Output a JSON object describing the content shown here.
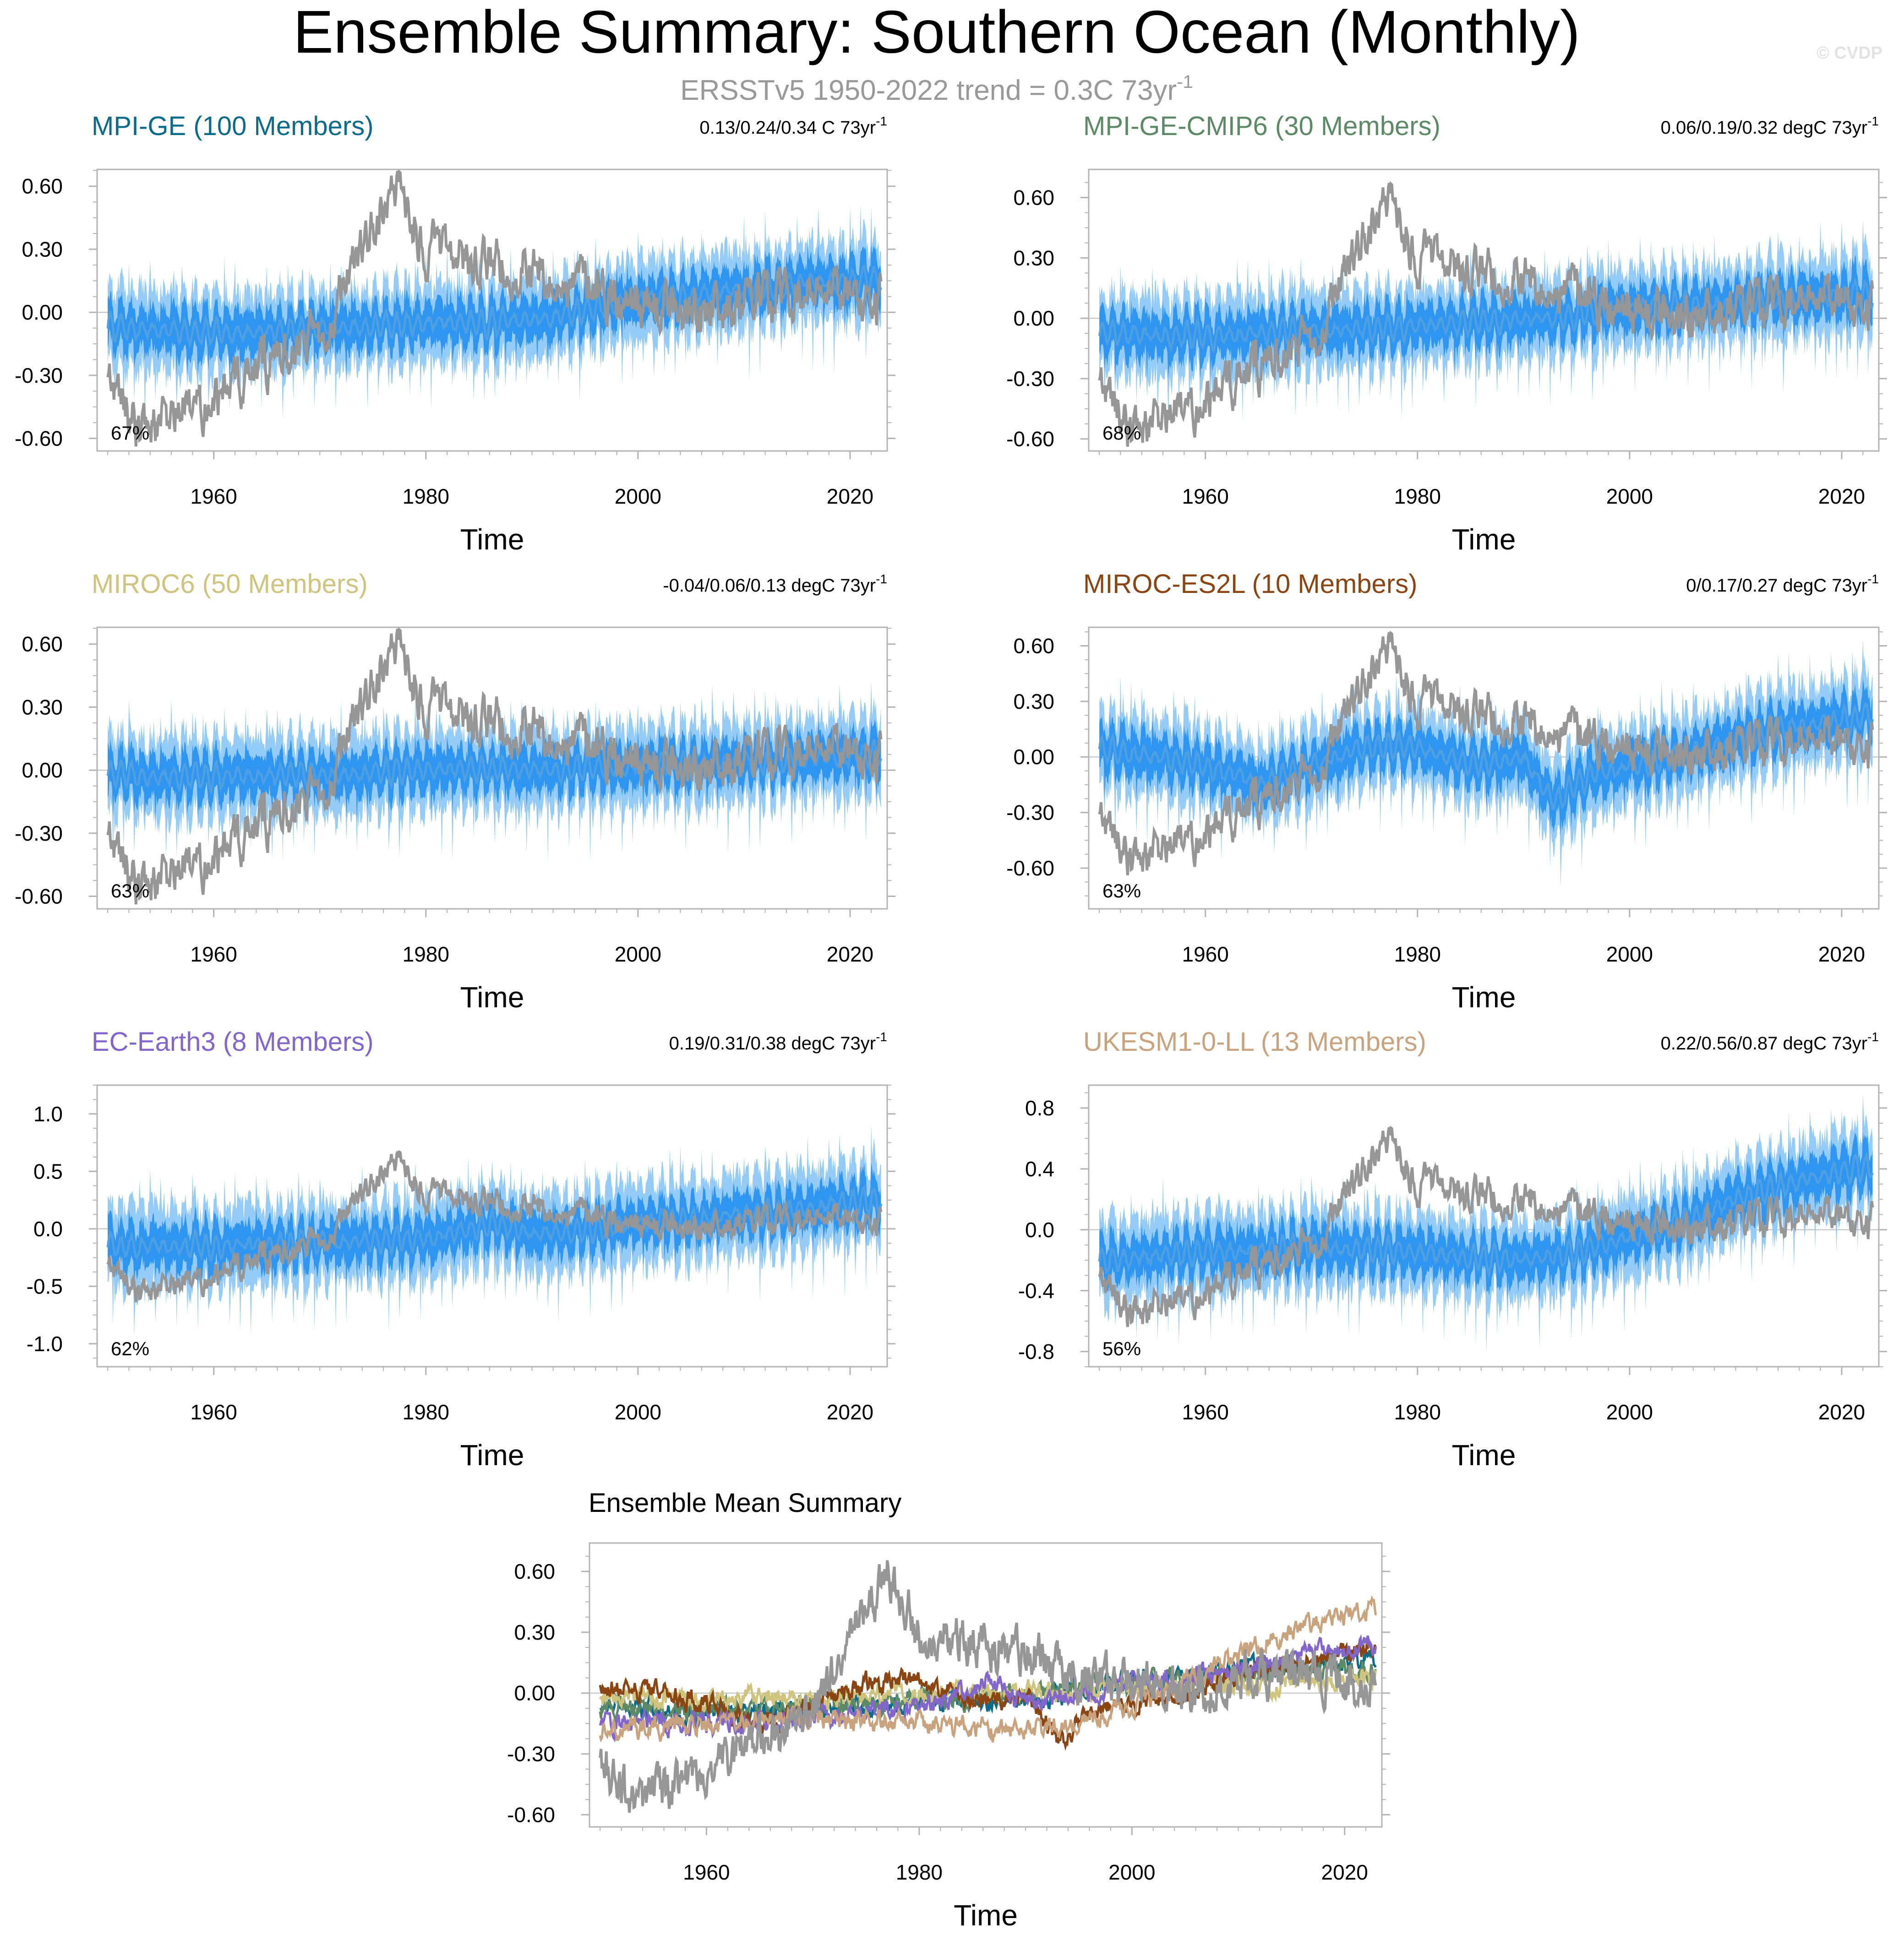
{
  "figure": {
    "title": "Ensemble Summary: Southern Ocean (Monthly)",
    "subtitle_main": "ERSSTv5 1950-2022 trend = 0.3C 73yr",
    "subtitle_sup": "-1",
    "watermark": "© CVDP"
  },
  "colors": {
    "band_outer": "#94cbf7",
    "band_inner": "#2e95f0",
    "mean_line": "#4f9fe3",
    "obs_line": "#969696",
    "zero_line": "#bdbdbd"
  },
  "chart_data": [
    {
      "type": "line",
      "title": "MPI-GE (100 Members)",
      "title_color": "#0b6b8a",
      "trend_text": "0.13/0.24/0.34 C 73yr",
      "trend_sup": "-1",
      "pct": "67%",
      "xlabel": "Time",
      "xlim": [
        1949,
        2023.5
      ],
      "xticks": [
        1960,
        1980,
        2000,
        2020
      ],
      "xtick_labels": [
        "1960",
        "1980",
        "2000",
        "2020"
      ],
      "ylim": [
        -0.66,
        0.68
      ],
      "yticks": [
        -0.6,
        -0.3,
        0.0,
        0.3,
        0.6
      ],
      "ytick_labels": [
        "-0.60",
        "-0.30",
        "0.00",
        "0.30",
        "0.60"
      ],
      "series": [
        {
          "name": "Ensemble mean",
          "x": [
            1950,
            1960,
            1970,
            1980,
            1990,
            2000,
            2010,
            2022
          ],
          "y": [
            -0.07,
            -0.1,
            -0.08,
            -0.05,
            -0.04,
            0.06,
            0.11,
            0.16
          ]
        },
        {
          "name": "ERSSTv5",
          "x": [
            1950,
            1953,
            1958,
            1963,
            1970,
            1977,
            1980,
            1985,
            1990,
            1995,
            2000,
            2005,
            2010,
            2015,
            2020,
            2022
          ],
          "y": [
            -0.3,
            -0.55,
            -0.45,
            -0.3,
            -0.1,
            0.62,
            0.3,
            0.25,
            0.2,
            0.1,
            0.05,
            0.0,
            0.05,
            0.1,
            0.05,
            0.05
          ]
        }
      ]
    },
    {
      "type": "line",
      "title": "MPI-GE-CMIP6 (30 Members)",
      "title_color": "#5d8a66",
      "trend_text": "0.06/0.19/0.32 degC 73yr",
      "trend_sup": "-1",
      "pct": "68%",
      "xlabel": "Time",
      "xlim": [
        1949,
        2023.5
      ],
      "xticks": [
        1960,
        1980,
        2000,
        2020
      ],
      "xtick_labels": [
        "1960",
        "1980",
        "2000",
        "2020"
      ],
      "ylim": [
        -0.66,
        0.74
      ],
      "yticks": [
        -0.6,
        -0.3,
        0.0,
        0.3,
        0.6
      ],
      "ytick_labels": [
        "-0.60",
        "-0.30",
        "0.00",
        "0.30",
        "0.60"
      ],
      "series": [
        {
          "name": "Ensemble mean",
          "x": [
            1950,
            1960,
            1970,
            1980,
            1990,
            2000,
            2010,
            2022
          ],
          "y": [
            -0.08,
            -0.09,
            -0.06,
            -0.04,
            -0.01,
            0.05,
            0.08,
            0.12
          ]
        },
        {
          "name": "ERSSTv5",
          "x": [
            1950,
            1953,
            1958,
            1963,
            1970,
            1977,
            1980,
            1985,
            1990,
            1995,
            2000,
            2005,
            2010,
            2015,
            2020,
            2022
          ],
          "y": [
            -0.3,
            -0.55,
            -0.45,
            -0.3,
            -0.1,
            0.62,
            0.3,
            0.25,
            0.2,
            0.1,
            0.05,
            0.0,
            0.05,
            0.1,
            0.05,
            0.05
          ]
        }
      ]
    },
    {
      "type": "line",
      "title": "MIROC6 (50 Members)",
      "title_color": "#cfc47d",
      "trend_text": "-0.04/0.06/0.13 degC 73yr",
      "trend_sup": "-1",
      "pct": "63%",
      "xlabel": "Time",
      "xlim": [
        1949,
        2023.5
      ],
      "xticks": [
        1960,
        1980,
        2000,
        2020
      ],
      "xtick_labels": [
        "1960",
        "1980",
        "2000",
        "2020"
      ],
      "ylim": [
        -0.66,
        0.68
      ],
      "yticks": [
        -0.6,
        -0.3,
        0.0,
        0.3,
        0.6
      ],
      "ytick_labels": [
        "-0.60",
        "-0.30",
        "0.00",
        "0.30",
        "0.60"
      ],
      "series": [
        {
          "name": "Ensemble mean",
          "x": [
            1950,
            1960,
            1970,
            1980,
            1990,
            2000,
            2010,
            2022
          ],
          "y": [
            -0.02,
            -0.03,
            -0.02,
            0.0,
            0.0,
            0.02,
            0.04,
            0.07
          ]
        },
        {
          "name": "ERSSTv5",
          "x": [
            1950,
            1953,
            1958,
            1963,
            1970,
            1977,
            1980,
            1985,
            1990,
            1995,
            2000,
            2005,
            2010,
            2015,
            2020,
            2022
          ],
          "y": [
            -0.3,
            -0.55,
            -0.45,
            -0.3,
            -0.1,
            0.62,
            0.3,
            0.25,
            0.2,
            0.1,
            0.05,
            0.0,
            0.05,
            0.1,
            0.05,
            0.05
          ]
        }
      ]
    },
    {
      "type": "line",
      "title": "MIROC-ES2L (10 Members)",
      "title_color": "#8a4512",
      "trend_text": "0/0.17/0.27 degC 73yr",
      "trend_sup": "-1",
      "pct": "63%",
      "xlabel": "Time",
      "xlim": [
        1949,
        2023.5
      ],
      "xticks": [
        1960,
        1980,
        2000,
        2020
      ],
      "xtick_labels": [
        "1960",
        "1980",
        "2000",
        "2020"
      ],
      "ylim": [
        -0.82,
        0.7
      ],
      "yticks": [
        -0.6,
        -0.3,
        0.0,
        0.3,
        0.6
      ],
      "ytick_labels": [
        "-0.60",
        "-0.30",
        "0.00",
        "0.30",
        "0.60"
      ],
      "series": [
        {
          "name": "Ensemble mean",
          "x": [
            1950,
            1955,
            1960,
            1965,
            1970,
            1975,
            1980,
            1985,
            1990,
            1993,
            1996,
            2000,
            2005,
            2010,
            2015,
            2022
          ],
          "y": [
            0.05,
            0.0,
            -0.05,
            -0.15,
            -0.05,
            0.05,
            0.05,
            -0.05,
            0.0,
            -0.25,
            -0.1,
            -0.05,
            0.0,
            0.1,
            0.15,
            0.22
          ]
        },
        {
          "name": "ERSSTv5",
          "x": [
            1950,
            1953,
            1958,
            1963,
            1970,
            1977,
            1980,
            1985,
            1990,
            1995,
            2000,
            2005,
            2010,
            2015,
            2020,
            2022
          ],
          "y": [
            -0.3,
            -0.55,
            -0.45,
            -0.3,
            -0.1,
            0.62,
            0.3,
            0.25,
            0.2,
            0.1,
            0.05,
            0.0,
            0.05,
            0.1,
            0.05,
            0.05
          ]
        }
      ]
    },
    {
      "type": "line",
      "title": "EC-Earth3 (8 Members)",
      "title_color": "#8366cc",
      "trend_text": "0.19/0.31/0.38 degC 73yr",
      "trend_sup": "-1",
      "pct": "62%",
      "xlabel": "Time",
      "xlim": [
        1949,
        2023.5
      ],
      "xticks": [
        1960,
        1980,
        2000,
        2020
      ],
      "xtick_labels": [
        "1960",
        "1980",
        "2000",
        "2020"
      ],
      "ylim": [
        -1.2,
        1.25
      ],
      "yticks": [
        -1.0,
        -0.5,
        0.0,
        0.5,
        1.0
      ],
      "ytick_labels": [
        "-1.0",
        "-0.5",
        "0.0",
        "0.5",
        "1.0"
      ],
      "series": [
        {
          "name": "Ensemble mean",
          "x": [
            1950,
            1960,
            1970,
            1980,
            1987,
            1990,
            2000,
            2010,
            2022
          ],
          "y": [
            -0.15,
            -0.15,
            -0.12,
            -0.08,
            0.05,
            -0.05,
            0.05,
            0.12,
            0.25
          ]
        },
        {
          "name": "ERSSTv5",
          "x": [
            1950,
            1953,
            1958,
            1963,
            1970,
            1977,
            1980,
            1985,
            1990,
            1995,
            2000,
            2005,
            2010,
            2015,
            2020,
            2022
          ],
          "y": [
            -0.3,
            -0.55,
            -0.45,
            -0.3,
            -0.1,
            0.62,
            0.3,
            0.25,
            0.2,
            0.1,
            0.05,
            0.0,
            0.05,
            0.1,
            0.05,
            0.05
          ]
        }
      ]
    },
    {
      "type": "line",
      "title": "UKESM1-0-LL (13 Members)",
      "title_color": "#c9a27e",
      "trend_text": "0.22/0.56/0.87 degC 73yr",
      "trend_sup": "-1",
      "pct": "56%",
      "xlabel": "Time",
      "xlim": [
        1949,
        2023.5
      ],
      "xticks": [
        1960,
        1980,
        2000,
        2020
      ],
      "xtick_labels": [
        "1960",
        "1980",
        "2000",
        "2020"
      ],
      "ylim": [
        -0.9,
        0.95
      ],
      "yticks": [
        -0.8,
        -0.4,
        0.0,
        0.4,
        0.8
      ],
      "ytick_labels": [
        "-0.8",
        "-0.4",
        "0.0",
        "0.4",
        "0.8"
      ],
      "series": [
        {
          "name": "Ensemble mean",
          "x": [
            1950,
            1960,
            1970,
            1980,
            1990,
            1995,
            2000,
            2005,
            2010,
            2015,
            2022
          ],
          "y": [
            -0.2,
            -0.15,
            -0.12,
            -0.15,
            -0.2,
            -0.15,
            -0.05,
            0.05,
            0.2,
            0.3,
            0.42
          ]
        },
        {
          "name": "ERSSTv5",
          "x": [
            1950,
            1953,
            1958,
            1963,
            1970,
            1977,
            1980,
            1985,
            1990,
            1995,
            2000,
            2005,
            2010,
            2015,
            2020,
            2022
          ],
          "y": [
            -0.3,
            -0.55,
            -0.45,
            -0.3,
            -0.1,
            0.62,
            0.3,
            0.25,
            0.2,
            0.1,
            0.05,
            0.0,
            0.05,
            0.1,
            0.05,
            0.05
          ]
        }
      ]
    },
    {
      "type": "line",
      "title": "Ensemble Mean Summary",
      "title_color": "#000000",
      "trend_text": "",
      "trend_sup": "",
      "pct": "",
      "xlabel": "Time",
      "xlim": [
        1949,
        2023.5
      ],
      "xticks": [
        1960,
        1980,
        2000,
        2020
      ],
      "xtick_labels": [
        "1960",
        "1980",
        "2000",
        "2020"
      ],
      "ylim": [
        -0.66,
        0.74
      ],
      "yticks": [
        -0.6,
        -0.3,
        0.0,
        0.3,
        0.6
      ],
      "ytick_labels": [
        "-0.60",
        "-0.30",
        "0.00",
        "0.30",
        "0.60"
      ],
      "series": [
        {
          "name": "MPI-GE",
          "color": "#0b6b8a",
          "x": [
            1950,
            1960,
            1970,
            1980,
            1990,
            2000,
            2010,
            2022
          ],
          "y": [
            -0.07,
            -0.1,
            -0.08,
            -0.05,
            -0.04,
            0.06,
            0.11,
            0.16
          ]
        },
        {
          "name": "MPI-GE-CMIP6",
          "color": "#5d8a66",
          "x": [
            1950,
            1960,
            1970,
            1980,
            1990,
            2000,
            2010,
            2022
          ],
          "y": [
            -0.08,
            -0.09,
            -0.06,
            -0.04,
            -0.01,
            0.05,
            0.08,
            0.12
          ]
        },
        {
          "name": "MIROC6",
          "color": "#cfc47d",
          "x": [
            1950,
            1960,
            1970,
            1980,
            1990,
            2000,
            2010,
            2022
          ],
          "y": [
            -0.02,
            -0.03,
            -0.02,
            0.0,
            0.0,
            0.02,
            0.04,
            0.07
          ]
        },
        {
          "name": "MIROC-ES2L",
          "color": "#8a4512",
          "x": [
            1950,
            1955,
            1960,
            1965,
            1970,
            1975,
            1980,
            1985,
            1990,
            1993,
            1996,
            2000,
            2005,
            2010,
            2015,
            2022
          ],
          "y": [
            0.05,
            0.0,
            -0.05,
            -0.15,
            -0.05,
            0.05,
            0.05,
            -0.05,
            0.0,
            -0.25,
            -0.1,
            -0.05,
            0.0,
            0.1,
            0.15,
            0.22
          ]
        },
        {
          "name": "EC-Earth3",
          "color": "#8366cc",
          "x": [
            1950,
            1960,
            1970,
            1980,
            1987,
            1990,
            2000,
            2010,
            2022
          ],
          "y": [
            -0.15,
            -0.15,
            -0.12,
            -0.08,
            0.05,
            -0.05,
            0.05,
            0.12,
            0.25
          ]
        },
        {
          "name": "UKESM1-0-LL",
          "color": "#c9a27e",
          "x": [
            1950,
            1960,
            1970,
            1980,
            1990,
            1995,
            2000,
            2005,
            2010,
            2015,
            2022
          ],
          "y": [
            -0.2,
            -0.15,
            -0.12,
            -0.15,
            -0.2,
            -0.15,
            -0.05,
            0.05,
            0.2,
            0.3,
            0.42
          ]
        },
        {
          "name": "ERSSTv5",
          "color": "#969696",
          "x": [
            1950,
            1953,
            1958,
            1963,
            1970,
            1977,
            1980,
            1985,
            1990,
            1995,
            2000,
            2005,
            2010,
            2015,
            2020,
            2022
          ],
          "y": [
            -0.3,
            -0.55,
            -0.45,
            -0.3,
            -0.1,
            0.62,
            0.3,
            0.25,
            0.2,
            0.1,
            0.05,
            0.0,
            0.05,
            0.1,
            0.05,
            0.05
          ]
        }
      ]
    }
  ]
}
